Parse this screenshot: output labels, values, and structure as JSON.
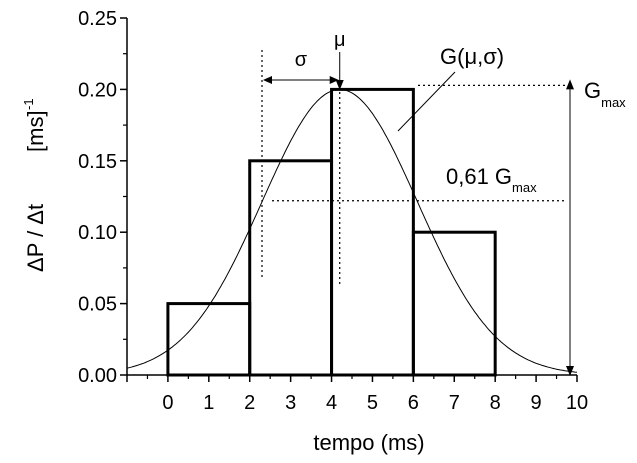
{
  "chart_data": {
    "type": "bar",
    "xlabel": "tempo (ms)",
    "ylabel_main": "ΔP / Δt",
    "ylabel_unit": "[ms]",
    "ylabel_exp": "-1",
    "xlim": [
      -1,
      10
    ],
    "ylim": [
      0,
      0.25
    ],
    "x_ticks": [
      0,
      1,
      2,
      3,
      4,
      5,
      6,
      7,
      8,
      9,
      10
    ],
    "y_ticks": [
      "0.00",
      "0.05",
      "0.10",
      "0.15",
      "0.20",
      "0.25"
    ],
    "histogram": [
      {
        "x0": 0,
        "x1": 2,
        "value": 0.05
      },
      {
        "x0": 2,
        "x1": 4,
        "value": 0.15
      },
      {
        "x0": 4,
        "x1": 6,
        "value": 0.2
      },
      {
        "x0": 6,
        "x1": 8,
        "value": 0.1
      }
    ],
    "gaussian": {
      "mu": 4.2,
      "sigma": 1.9,
      "peak": 0.2,
      "x_from": -1.0,
      "x_to": 10.0
    },
    "annotations": {
      "sigma": "σ",
      "mu": "μ",
      "curve_label": "G(μ,σ)",
      "gmax_base": "G",
      "gmax_sub": "max",
      "level_prefix": "0,61 G",
      "level_sub": "max",
      "level_value": 0.122,
      "sigma_line_x": 2.3
    }
  }
}
